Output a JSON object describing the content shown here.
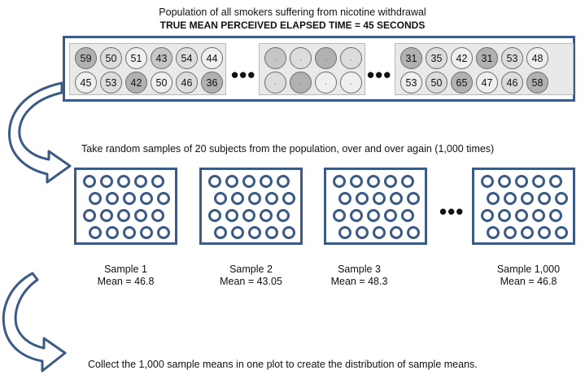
{
  "header": {
    "line1": "Population of all smokers suffering from nicotine withdrawal",
    "line2": "TRUE MEAN PERCEIVED ELAPSED TIME = 45 SECONDS"
  },
  "population": {
    "left_top": [
      "59",
      "50",
      "51",
      "43",
      "54",
      "44"
    ],
    "left_bottom": [
      "45",
      "53",
      "42",
      "50",
      "46",
      "36"
    ],
    "mid_top": [
      ".",
      ".",
      ".",
      "."
    ],
    "mid_bottom": [
      ".",
      ".",
      ".",
      "."
    ],
    "right_top": [
      "31",
      "35",
      "42",
      "31",
      "53",
      "48"
    ],
    "right_bottom": [
      "53",
      "50",
      "65",
      "47",
      "46",
      "58"
    ],
    "ellipsis": "•••"
  },
  "sampling_caption": "Take random samples of 20 subjects from the population, over and over again (1,000 times)",
  "samples": [
    {
      "name": "Sample 1",
      "mean": "Mean = 46.8"
    },
    {
      "name": "Sample 2",
      "mean": "Mean = 43.05"
    },
    {
      "name": "Sample 3",
      "mean": "Mean = 48.3"
    },
    {
      "name": "Sample 1,000",
      "mean": "Mean = 46.8"
    }
  ],
  "samples_ellipsis": "•••",
  "final_caption": "Collect the 1,000 sample means in one plot to create the distribution of sample means.",
  "colors": {
    "frame": "#3b5b86",
    "arrow_fill": "#ffffff",
    "arrow_stroke": "#3b5b86"
  }
}
